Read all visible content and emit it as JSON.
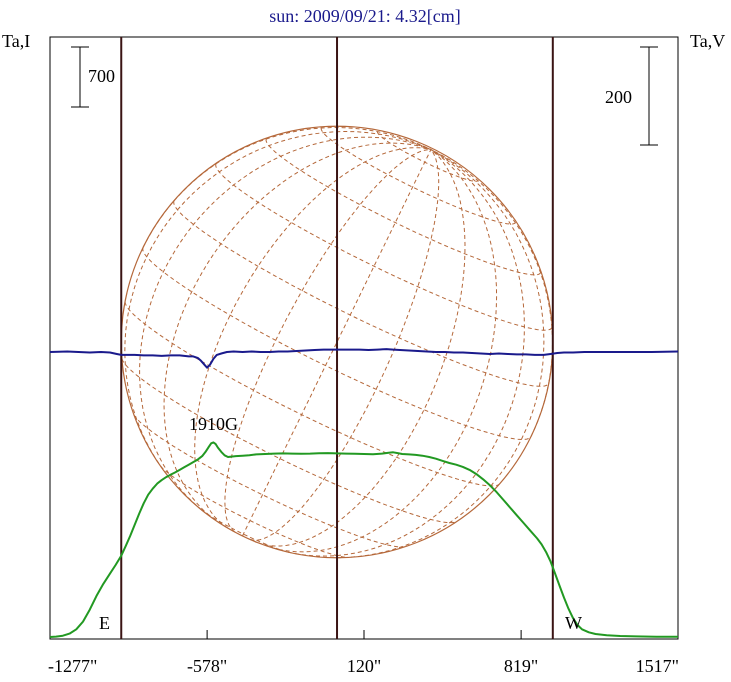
{
  "chart_data": {
    "type": "line",
    "title": "sun: 2009/09/21: 4.32[cm]",
    "y_left_label": "Ta,I",
    "y_right_label": "Ta,V",
    "x_ticks": [
      "-1277\"",
      "-578\"",
      "120\"",
      "819\"",
      "1517\""
    ],
    "x_tick_values": [
      -1277,
      -578,
      120,
      819,
      1517
    ],
    "xlim": [
      -1277,
      1517
    ],
    "left_scale_label": "700",
    "right_scale_label": "200",
    "left_scale_value": 700,
    "right_scale_value": 200,
    "annotations": {
      "east": "E",
      "west": "W",
      "source": "1910G"
    },
    "limb_positions": [
      -960,
      960
    ],
    "center_position": 0,
    "series": [
      {
        "color": "#229922",
        "points": [
          [
            -1277,
            0
          ],
          [
            -1250,
            5
          ],
          [
            -1220,
            15
          ],
          [
            -1190,
            40
          ],
          [
            -1160,
            90
          ],
          [
            -1130,
            180
          ],
          [
            -1100,
            320
          ],
          [
            -1070,
            480
          ],
          [
            -1040,
            620
          ],
          [
            -1010,
            740
          ],
          [
            -985,
            840
          ],
          [
            -960,
            950
          ],
          [
            -940,
            1060
          ],
          [
            -920,
            1180
          ],
          [
            -900,
            1310
          ],
          [
            -880,
            1440
          ],
          [
            -860,
            1560
          ],
          [
            -840,
            1660
          ],
          [
            -820,
            1730
          ],
          [
            -800,
            1790
          ],
          [
            -780,
            1830
          ],
          [
            -760,
            1865
          ],
          [
            -740,
            1895
          ],
          [
            -720,
            1920
          ],
          [
            -700,
            1950
          ],
          [
            -680,
            1980
          ],
          [
            -660,
            2010
          ],
          [
            -640,
            2040
          ],
          [
            -620,
            2070
          ],
          [
            -600,
            2110
          ],
          [
            -585,
            2160
          ],
          [
            -570,
            2220
          ],
          [
            -560,
            2260
          ],
          [
            -550,
            2270
          ],
          [
            -540,
            2250
          ],
          [
            -530,
            2210
          ],
          [
            -515,
            2160
          ],
          [
            -500,
            2120
          ],
          [
            -485,
            2100
          ],
          [
            -470,
            2105
          ],
          [
            -450,
            2110
          ],
          [
            -420,
            2115
          ],
          [
            -390,
            2120
          ],
          [
            -360,
            2130
          ],
          [
            -320,
            2135
          ],
          [
            -280,
            2140
          ],
          [
            -240,
            2142
          ],
          [
            -200,
            2140
          ],
          [
            -160,
            2138
          ],
          [
            -120,
            2140
          ],
          [
            -80,
            2143
          ],
          [
            -40,
            2145
          ],
          [
            0,
            2142
          ],
          [
            40,
            2140
          ],
          [
            80,
            2138
          ],
          [
            120,
            2135
          ],
          [
            160,
            2133
          ],
          [
            200,
            2140
          ],
          [
            230,
            2150
          ],
          [
            250,
            2155
          ],
          [
            270,
            2145
          ],
          [
            290,
            2135
          ],
          [
            320,
            2130
          ],
          [
            350,
            2125
          ],
          [
            380,
            2115
          ],
          [
            410,
            2100
          ],
          [
            440,
            2080
          ],
          [
            470,
            2055
          ],
          [
            500,
            2030
          ],
          [
            530,
            2010
          ],
          [
            560,
            1985
          ],
          [
            590,
            1950
          ],
          [
            620,
            1900
          ],
          [
            650,
            1840
          ],
          [
            680,
            1770
          ],
          [
            710,
            1690
          ],
          [
            740,
            1600
          ],
          [
            770,
            1510
          ],
          [
            800,
            1420
          ],
          [
            830,
            1330
          ],
          [
            860,
            1240
          ],
          [
            890,
            1150
          ],
          [
            910,
            1080
          ],
          [
            930,
            990
          ],
          [
            950,
            880
          ],
          [
            970,
            740
          ],
          [
            990,
            600
          ],
          [
            1010,
            460
          ],
          [
            1030,
            330
          ],
          [
            1050,
            220
          ],
          [
            1070,
            140
          ],
          [
            1090,
            90
          ],
          [
            1120,
            55
          ],
          [
            1150,
            35
          ],
          [
            1200,
            20
          ],
          [
            1260,
            12
          ],
          [
            1330,
            7
          ],
          [
            1420,
            4
          ],
          [
            1517,
            3
          ]
        ]
      },
      {
        "color": "#1a1a8c",
        "points": [
          [
            -1277,
            0
          ],
          [
            -1200,
            1
          ],
          [
            -1150,
            0
          ],
          [
            -1100,
            -1
          ],
          [
            -1050,
            0
          ],
          [
            -1010,
            -1
          ],
          [
            -980,
            -4
          ],
          [
            -960,
            -6
          ],
          [
            -940,
            -6
          ],
          [
            -900,
            -6
          ],
          [
            -860,
            -7
          ],
          [
            -820,
            -7
          ],
          [
            -780,
            -8
          ],
          [
            -740,
            -7
          ],
          [
            -700,
            -7
          ],
          [
            -660,
            -9
          ],
          [
            -640,
            -9
          ],
          [
            -620,
            -12
          ],
          [
            -605,
            -18
          ],
          [
            -590,
            -26
          ],
          [
            -578,
            -32
          ],
          [
            -565,
            -26
          ],
          [
            -550,
            -14
          ],
          [
            -535,
            -6
          ],
          [
            -515,
            -3
          ],
          [
            -490,
            0
          ],
          [
            -460,
            1
          ],
          [
            -420,
            0
          ],
          [
            -380,
            1
          ],
          [
            -340,
            0
          ],
          [
            -300,
            0
          ],
          [
            -260,
            1
          ],
          [
            -220,
            1
          ],
          [
            -180,
            2
          ],
          [
            -140,
            3
          ],
          [
            -100,
            4
          ],
          [
            -60,
            5
          ],
          [
            -20,
            5
          ],
          [
            20,
            5
          ],
          [
            60,
            5
          ],
          [
            100,
            5
          ],
          [
            140,
            4
          ],
          [
            180,
            5
          ],
          [
            220,
            6
          ],
          [
            250,
            5
          ],
          [
            280,
            4
          ],
          [
            320,
            3
          ],
          [
            360,
            2
          ],
          [
            400,
            1
          ],
          [
            440,
            0
          ],
          [
            480,
            0
          ],
          [
            520,
            -1
          ],
          [
            560,
            -1
          ],
          [
            600,
            -2
          ],
          [
            640,
            -3
          ],
          [
            680,
            -4
          ],
          [
            720,
            -3
          ],
          [
            760,
            -4
          ],
          [
            800,
            -5
          ],
          [
            840,
            -5
          ],
          [
            880,
            -6
          ],
          [
            920,
            -6
          ],
          [
            950,
            -4
          ],
          [
            980,
            -2
          ],
          [
            1010,
            -1
          ],
          [
            1050,
            -1
          ],
          [
            1100,
            0
          ],
          [
            1200,
            0
          ],
          [
            1300,
            0
          ],
          [
            1400,
            0
          ],
          [
            1517,
            1
          ]
        ]
      }
    ]
  }
}
